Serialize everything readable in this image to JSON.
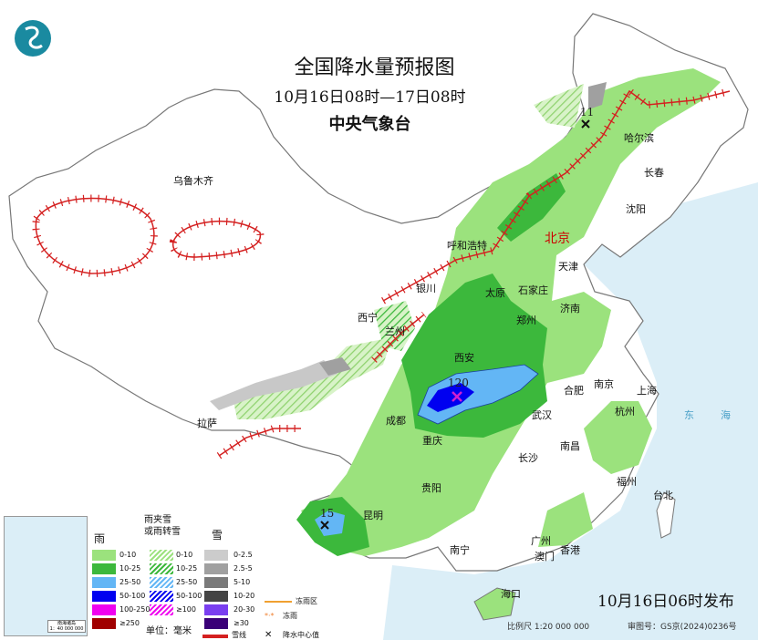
{
  "header": {
    "title": "全国降水量预报图",
    "period": "10月16日08时—17日08时",
    "issuer": "中央气象台"
  },
  "cities": [
    {
      "name": "乌鲁木齐"
    },
    {
      "name": "哈尔滨"
    },
    {
      "name": "长春"
    },
    {
      "name": "沈阳"
    },
    {
      "name": "北京",
      "capital": true
    },
    {
      "name": "天津"
    },
    {
      "name": "呼和浩特"
    },
    {
      "name": "石家庄"
    },
    {
      "name": "太原"
    },
    {
      "name": "济南"
    },
    {
      "name": "银川"
    },
    {
      "name": "西宁"
    },
    {
      "name": "兰州"
    },
    {
      "name": "西安"
    },
    {
      "name": "郑州"
    },
    {
      "name": "合肥"
    },
    {
      "name": "南京"
    },
    {
      "name": "上海"
    },
    {
      "name": "杭州"
    },
    {
      "name": "武汉"
    },
    {
      "name": "成都"
    },
    {
      "name": "重庆"
    },
    {
      "name": "拉萨"
    },
    {
      "name": "长沙"
    },
    {
      "name": "南昌"
    },
    {
      "name": "福州"
    },
    {
      "name": "台北"
    },
    {
      "name": "贵阳"
    },
    {
      "name": "昆明"
    },
    {
      "name": "南宁"
    },
    {
      "name": "广州"
    },
    {
      "name": "澳门"
    },
    {
      "name": "香港"
    },
    {
      "name": "海口"
    }
  ],
  "center_values": [
    "120",
    "15",
    "11"
  ],
  "sea_labels": [
    "东",
    "海"
  ],
  "legend": {
    "rain_title": "雨",
    "mixed_title": "雨夹雪\n或雨转雪",
    "mixed_title_1": "雨夹雪",
    "mixed_title_2": "或雨转雪",
    "snow_title": "雪",
    "rain": [
      {
        "label": "0-10",
        "color": "#9be27d"
      },
      {
        "label": "10-25",
        "color": "#3cb83c"
      },
      {
        "label": "25-50",
        "color": "#63b6f5"
      },
      {
        "label": "50-100",
        "color": "#0000f0"
      },
      {
        "label": "100-250",
        "color": "#f000f0"
      },
      {
        "label": "≥250",
        "color": "#a00000"
      }
    ],
    "mixed": [
      {
        "label": "0-10",
        "color": "#9be27d"
      },
      {
        "label": "10-25",
        "color": "#3cb83c"
      },
      {
        "label": "25-50",
        "color": "#63b6f5"
      },
      {
        "label": "50-100",
        "color": "#0000f0"
      },
      {
        "label": "≥100",
        "color": "#f000f0"
      }
    ],
    "snow": [
      {
        "label": "0-2.5",
        "color": "#cccccc"
      },
      {
        "label": "2.5-5",
        "color": "#a0a0a0"
      },
      {
        "label": "5-10",
        "color": "#7a7a7a"
      },
      {
        "label": "10-20",
        "color": "#444444"
      },
      {
        "label": "20-30",
        "color": "#7a3ff0"
      },
      {
        "label": "≥30",
        "color": "#3a0078"
      }
    ],
    "unit": "单位：毫米",
    "freezing_zone": "冻雨区",
    "freezing_rain": "冻雨",
    "snow_line": "雪线",
    "center_value": "降水中心值",
    "inset_title": "南海诸岛",
    "inset_scale": "1：40 000 000"
  },
  "footer": {
    "issued": "10月16日06时发布",
    "scale": "比例尺 1:20 000 000",
    "review_no": "审图号：GS京(2024)0236号"
  },
  "colors": {
    "sea": "#dbeef7",
    "land": "#ffffff",
    "border": "#888888",
    "front": "#d42020"
  }
}
